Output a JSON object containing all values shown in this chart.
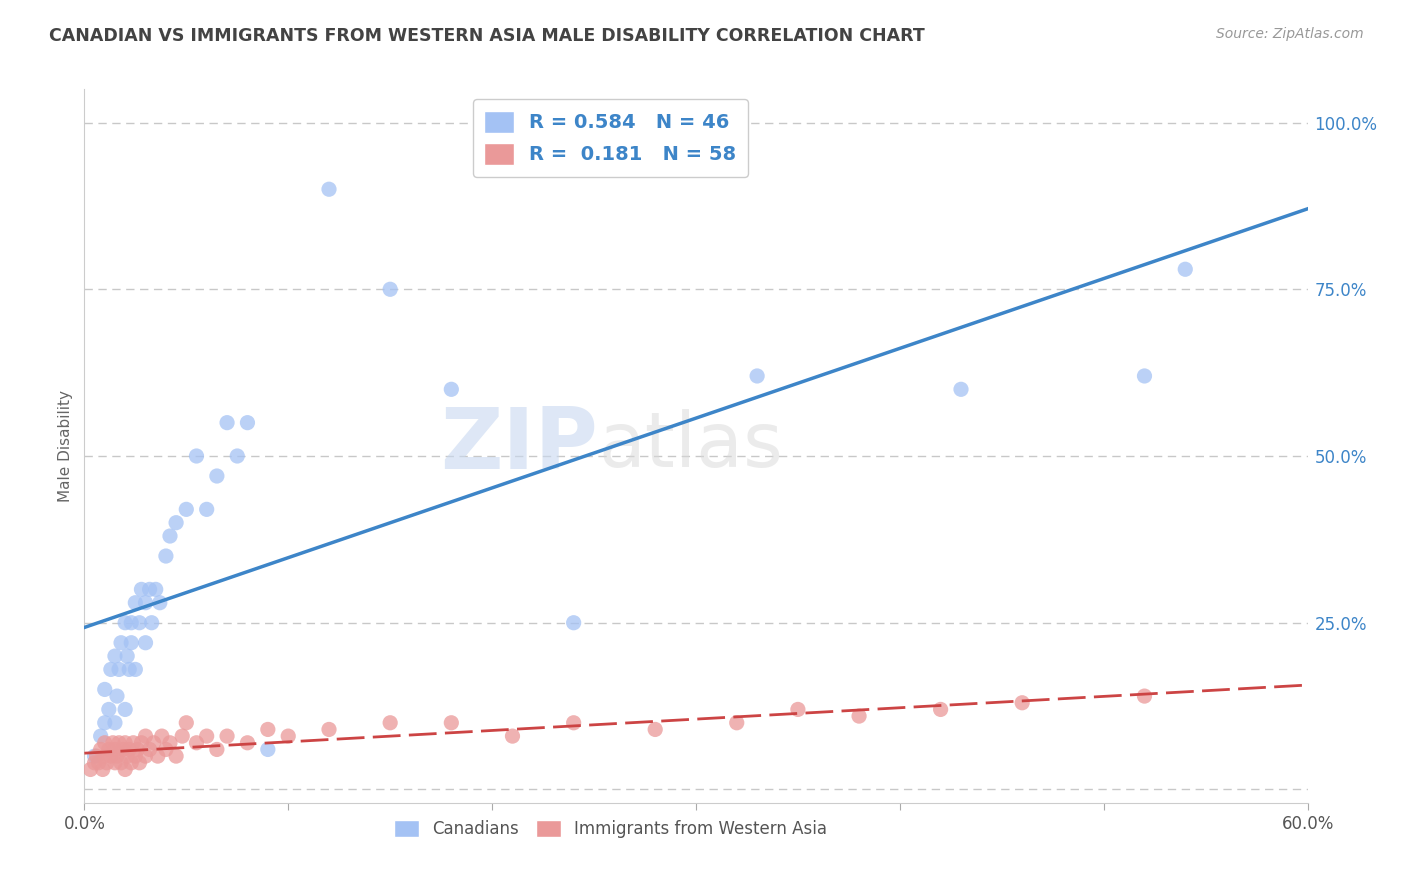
{
  "title": "CANADIAN VS IMMIGRANTS FROM WESTERN ASIA MALE DISABILITY CORRELATION CHART",
  "source": "Source: ZipAtlas.com",
  "ylabel": "Male Disability",
  "xlim": [
    0.0,
    0.6
  ],
  "ylim": [
    -0.02,
    1.05
  ],
  "right_yticks": [
    0.0,
    0.25,
    0.5,
    0.75,
    1.0
  ],
  "right_yticklabels": [
    "",
    "25.0%",
    "50.0%",
    "75.0%",
    "100.0%"
  ],
  "xtick_positions": [
    0.0,
    0.1,
    0.2,
    0.3,
    0.4,
    0.5,
    0.6
  ],
  "canadian_R": 0.584,
  "canadian_N": 46,
  "immigrant_R": 0.181,
  "immigrant_N": 58,
  "blue_color": "#a4c2f4",
  "pink_color": "#ea9999",
  "blue_line_color": "#3d85c8",
  "pink_line_color": "#cc4444",
  "title_color": "#434343",
  "source_color": "#999999",
  "legend_r_color": "#3d85c8",
  "watermark_zip": "ZIP",
  "watermark_atlas": "atlas",
  "grid_color": "#bbbbbb",
  "bg_color": "#ffffff",
  "canadian_x": [
    0.005,
    0.008,
    0.01,
    0.01,
    0.012,
    0.013,
    0.015,
    0.015,
    0.016,
    0.017,
    0.018,
    0.02,
    0.02,
    0.021,
    0.022,
    0.023,
    0.023,
    0.025,
    0.025,
    0.027,
    0.028,
    0.03,
    0.03,
    0.032,
    0.033,
    0.035,
    0.037,
    0.04,
    0.042,
    0.045,
    0.05,
    0.055,
    0.06,
    0.065,
    0.07,
    0.075,
    0.08,
    0.09,
    0.12,
    0.15,
    0.18,
    0.24,
    0.33,
    0.43,
    0.52,
    0.54
  ],
  "canadian_y": [
    0.05,
    0.08,
    0.1,
    0.15,
    0.12,
    0.18,
    0.1,
    0.2,
    0.14,
    0.18,
    0.22,
    0.12,
    0.25,
    0.2,
    0.18,
    0.25,
    0.22,
    0.18,
    0.28,
    0.25,
    0.3,
    0.22,
    0.28,
    0.3,
    0.25,
    0.3,
    0.28,
    0.35,
    0.38,
    0.4,
    0.42,
    0.5,
    0.42,
    0.47,
    0.55,
    0.5,
    0.55,
    0.06,
    0.9,
    0.75,
    0.6,
    0.25,
    0.62,
    0.6,
    0.62,
    0.78
  ],
  "immigrant_x": [
    0.003,
    0.005,
    0.006,
    0.007,
    0.008,
    0.009,
    0.01,
    0.01,
    0.011,
    0.012,
    0.013,
    0.014,
    0.015,
    0.015,
    0.016,
    0.017,
    0.018,
    0.019,
    0.02,
    0.02,
    0.021,
    0.022,
    0.023,
    0.024,
    0.025,
    0.026,
    0.027,
    0.028,
    0.03,
    0.03,
    0.032,
    0.034,
    0.036,
    0.038,
    0.04,
    0.042,
    0.045,
    0.048,
    0.05,
    0.055,
    0.06,
    0.065,
    0.07,
    0.08,
    0.09,
    0.1,
    0.12,
    0.15,
    0.18,
    0.21,
    0.24,
    0.28,
    0.32,
    0.35,
    0.38,
    0.42,
    0.46,
    0.52
  ],
  "immigrant_y": [
    0.03,
    0.04,
    0.05,
    0.04,
    0.06,
    0.03,
    0.05,
    0.07,
    0.04,
    0.06,
    0.05,
    0.07,
    0.04,
    0.06,
    0.05,
    0.07,
    0.04,
    0.06,
    0.03,
    0.07,
    0.05,
    0.06,
    0.04,
    0.07,
    0.05,
    0.06,
    0.04,
    0.07,
    0.05,
    0.08,
    0.06,
    0.07,
    0.05,
    0.08,
    0.06,
    0.07,
    0.05,
    0.08,
    0.1,
    0.07,
    0.08,
    0.06,
    0.08,
    0.07,
    0.09,
    0.08,
    0.09,
    0.1,
    0.1,
    0.08,
    0.1,
    0.09,
    0.1,
    0.12,
    0.11,
    0.12,
    0.13,
    0.14
  ]
}
